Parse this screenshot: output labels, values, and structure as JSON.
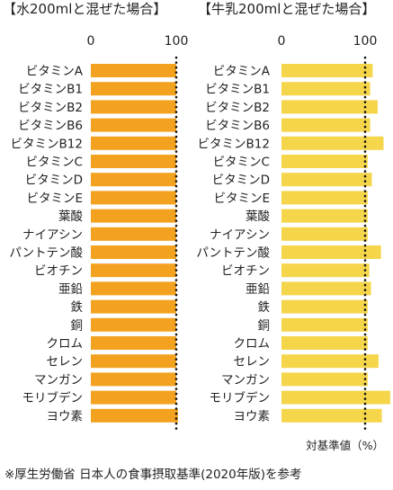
{
  "footnote": "※厚生労働省 日本人の食事摂取基準(2020年版)を参考",
  "unit_label": "対基準値（%）",
  "chart_data": [
    {
      "type": "bar",
      "orientation": "horizontal",
      "title": "【水200mlと混ぜた場合】",
      "xlim": [
        0,
        100
      ],
      "x_ticks": [
        "0",
        "100"
      ],
      "reference_line": 100,
      "bar_color": "#f3a21f",
      "categories": [
        "ビタミンA",
        "ビタミンB1",
        "ビタミンB2",
        "ビタミンB6",
        "ビタミンB12",
        "ビタミンC",
        "ビタミンD",
        "ビタミンE",
        "葉酸",
        "ナイアシン",
        "パントテン酸",
        "ビオチン",
        "亜鉛",
        "鉄",
        "銅",
        "クロム",
        "セレン",
        "マンガン",
        "モリブデン",
        "ヨウ素"
      ],
      "values": [
        100,
        100,
        100,
        100,
        100,
        100,
        100,
        100,
        100,
        100,
        100,
        100,
        100,
        100,
        100,
        100,
        100,
        100,
        100,
        102
      ]
    },
    {
      "type": "bar",
      "orientation": "horizontal",
      "title": "【牛乳200mlと混ぜた場合】",
      "xlim": [
        0,
        100
      ],
      "x_ticks": [
        "0",
        "100"
      ],
      "reference_line": 100,
      "bar_color": "#f5d54a",
      "categories": [
        "ビタミンA",
        "ビタミンB1",
        "ビタミンB2",
        "ビタミンB6",
        "ビタミンB12",
        "ビタミンC",
        "ビタミンD",
        "ビタミンE",
        "葉酸",
        "ナイアシン",
        "パントテン酸",
        "ビオチン",
        "亜鉛",
        "鉄",
        "銅",
        "クロム",
        "セレン",
        "マンガン",
        "モリブデン",
        "ヨウ素"
      ],
      "values": [
        109,
        106,
        115,
        106,
        122,
        103,
        108,
        103,
        103,
        103,
        119,
        105,
        107,
        103,
        103,
        103,
        116,
        103,
        130,
        120
      ]
    }
  ]
}
